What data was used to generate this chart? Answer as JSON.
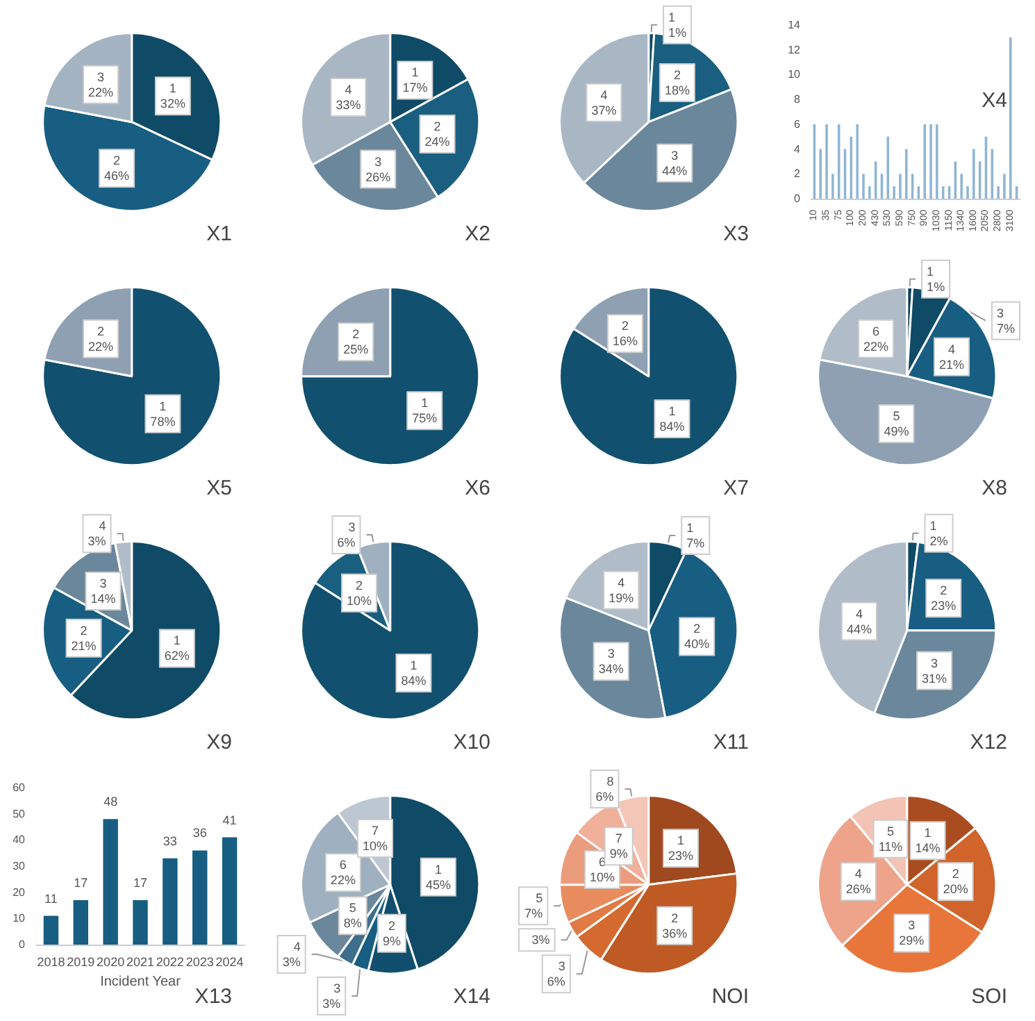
{
  "chart_data": [
    {
      "type": "pie",
      "title": "X1",
      "categories": [
        "1",
        "2",
        "3"
      ],
      "values": [
        32,
        46,
        22
      ],
      "value_labels": [
        "32%",
        "46%",
        "22%"
      ],
      "colors": [
        "#0f4a66",
        "#175e82",
        "#a4b3c2"
      ]
    },
    {
      "type": "pie",
      "title": "X2",
      "categories": [
        "1",
        "2",
        "3",
        "4"
      ],
      "values": [
        17,
        24,
        26,
        33
      ],
      "value_labels": [
        "17%",
        "24%",
        "26%",
        "33%"
      ],
      "colors": [
        "#0f4a66",
        "#1a5f80",
        "#6b879c",
        "#a9b7c5"
      ]
    },
    {
      "type": "pie",
      "title": "X3",
      "categories": [
        "1",
        "2",
        "3",
        "4"
      ],
      "values": [
        1,
        18,
        44,
        37
      ],
      "value_labels": [
        "1%",
        "18%",
        "44%",
        "37%"
      ],
      "colors": [
        "#0f4a66",
        "#1a5f80",
        "#6b879c",
        "#a9b7c5"
      ]
    },
    {
      "type": "bar",
      "title": "X4",
      "categories": [
        "10",
        null,
        "35",
        null,
        "75",
        null,
        "100",
        null,
        "200",
        null,
        "430",
        null,
        "530",
        null,
        "590",
        null,
        "750",
        null,
        "900",
        null,
        "1030",
        null,
        "1150",
        null,
        "1340",
        null,
        "1600",
        null,
        "2050",
        null,
        "2800",
        null,
        "3100",
        null
      ],
      "values": [
        6,
        4,
        6,
        2,
        6,
        4,
        5,
        6,
        2,
        1,
        3,
        2,
        5,
        1,
        2,
        4,
        2,
        1,
        6,
        6,
        6,
        1,
        1,
        3,
        2,
        1,
        4,
        3,
        5,
        4,
        1,
        2,
        13,
        1
      ],
      "color": "#8fb5d3",
      "ylim": [
        0,
        14
      ],
      "yticks": [
        0,
        2,
        4,
        6,
        8,
        10,
        12,
        14
      ]
    },
    {
      "type": "pie",
      "title": "X5",
      "categories": [
        "1",
        "2"
      ],
      "values": [
        78,
        22
      ],
      "value_labels": [
        "78%",
        "22%"
      ],
      "colors": [
        "#11506f",
        "#8ea0b2"
      ]
    },
    {
      "type": "pie",
      "title": "X6",
      "categories": [
        "1",
        "2"
      ],
      "values": [
        75,
        25
      ],
      "value_labels": [
        "75%",
        "25%"
      ],
      "colors": [
        "#11506f",
        "#8ea0b2"
      ]
    },
    {
      "type": "pie",
      "title": "X7",
      "categories": [
        "1",
        "2"
      ],
      "values": [
        84,
        16
      ],
      "value_labels": [
        "84%",
        "16%"
      ],
      "colors": [
        "#11506f",
        "#8ea0b2"
      ]
    },
    {
      "type": "pie",
      "title": "X8",
      "categories": [
        "1",
        "3",
        "4",
        "5",
        "6"
      ],
      "values": [
        1,
        7,
        21,
        49,
        22
      ],
      "value_labels": [
        "1%",
        "7%",
        "21%",
        "49%",
        "22%"
      ],
      "colors": [
        "#0b3e58",
        "#0f4a66",
        "#175e82",
        "#8ea0b2",
        "#b0bcc8"
      ]
    },
    {
      "type": "pie",
      "title": "X9",
      "categories": [
        "1",
        "2",
        "3",
        "4"
      ],
      "values": [
        62,
        21,
        14,
        3
      ],
      "value_labels": [
        "62%",
        "21%",
        "14%",
        "3%"
      ],
      "colors": [
        "#0f4a66",
        "#175e82",
        "#6b879c",
        "#b0bcc8"
      ]
    },
    {
      "type": "pie",
      "title": "X10",
      "categories": [
        "1",
        "2",
        "3"
      ],
      "values": [
        84,
        10,
        6
      ],
      "value_labels": [
        "84%",
        "10%",
        "6%"
      ],
      "colors": [
        "#11506f",
        "#1a5f80",
        "#9fb0c0"
      ]
    },
    {
      "type": "pie",
      "title": "X11",
      "categories": [
        "1",
        "2",
        "3",
        "4"
      ],
      "values": [
        7,
        40,
        34,
        19
      ],
      "value_labels": [
        "7%",
        "40%",
        "34%",
        "19%"
      ],
      "colors": [
        "#0f4a66",
        "#175e82",
        "#6b879c",
        "#b0bcc8"
      ]
    },
    {
      "type": "pie",
      "title": "X12",
      "categories": [
        "1",
        "2",
        "3",
        "4"
      ],
      "values": [
        2,
        23,
        31,
        44
      ],
      "value_labels": [
        "2%",
        "23%",
        "31%",
        "44%"
      ],
      "colors": [
        "#0f4a66",
        "#175e82",
        "#6b879c",
        "#b0bcc8"
      ]
    },
    {
      "type": "bar",
      "title": "X13",
      "xlabel": "Incident Year",
      "categories": [
        "2018",
        "2019",
        "2020",
        "2021",
        "2022",
        "2023",
        "2024"
      ],
      "values": [
        11,
        17,
        48,
        17,
        33,
        36,
        41
      ],
      "color": "#175e82",
      "ylim": [
        0,
        60
      ],
      "yticks": [
        0,
        10,
        20,
        30,
        40,
        50,
        60
      ],
      "data_labels": true
    },
    {
      "type": "pie",
      "title": "X14",
      "categories": [
        "1",
        "2",
        "3",
        "4",
        "5",
        "6",
        "7"
      ],
      "values": [
        45,
        9,
        3,
        3,
        8,
        22,
        10
      ],
      "value_labels": [
        "45%",
        "9%",
        "3%",
        "3%",
        "8%",
        "22%",
        "10%"
      ],
      "colors": [
        "#0f4a66",
        "#124f6e",
        "#175e82",
        "#3d6f8c",
        "#6b879c",
        "#9fb0c0",
        "#bcc7d2"
      ]
    },
    {
      "type": "pie",
      "title": "NOI",
      "categories": [
        "1",
        "2",
        "3",
        null,
        "5",
        "6",
        "7",
        "8"
      ],
      "values": [
        23,
        36,
        6,
        3,
        7,
        10,
        9,
        6
      ],
      "value_labels": [
        "23%",
        "36%",
        "6%",
        "3%",
        "7%",
        "10%",
        "9%",
        "6%"
      ],
      "colors": [
        "#a0481e",
        "#bf5a24",
        "#d56a30",
        "#e07b45",
        "#e88c5e",
        "#eb9c7c",
        "#f0b09a",
        "#f4c6b8"
      ]
    },
    {
      "type": "pie",
      "title": "SOI",
      "categories": [
        "1",
        "2",
        "3",
        "4",
        "5"
      ],
      "values": [
        14,
        20,
        29,
        26,
        11
      ],
      "value_labels": [
        "14%",
        "20%",
        "29%",
        "26%",
        "11%"
      ],
      "colors": [
        "#a94d21",
        "#d0642a",
        "#e8763a",
        "#eda48a",
        "#f3c4b6"
      ]
    }
  ]
}
